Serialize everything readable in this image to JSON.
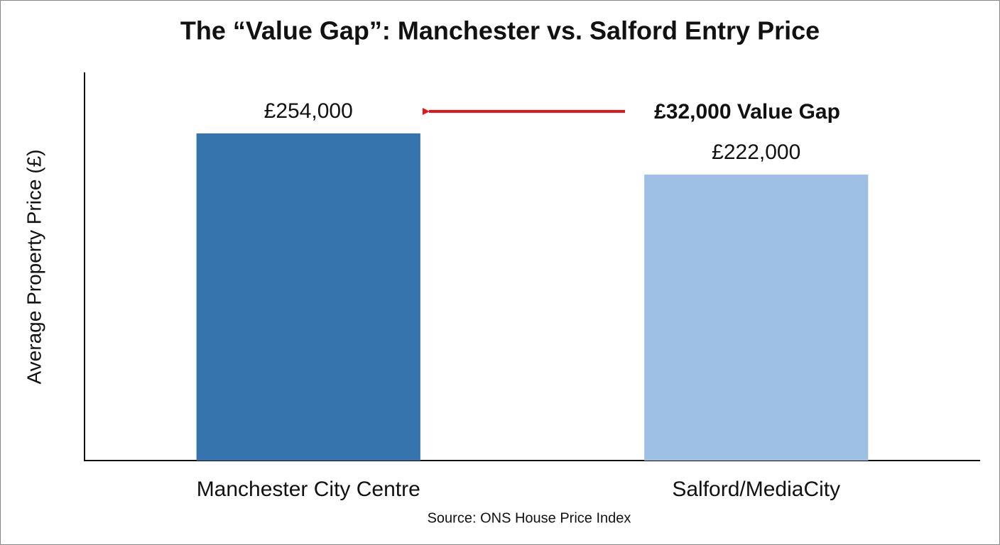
{
  "chart_data": {
    "type": "bar",
    "title": "The “Value Gap”: Manchester vs. Salford Entry Price",
    "y_label": "Average Property Price (£)",
    "categories": [
      "Manchester City Centre",
      "Salford/MediaCity"
    ],
    "values": [
      254000,
      222000
    ],
    "value_labels": [
      "£254,000",
      "£222,000"
    ],
    "colors": [
      "#3674ae",
      "#9dc0e4"
    ],
    "ylim": [
      0,
      300000
    ],
    "annotation": "£32,000 Value Gap",
    "source": "Source: ONS House Price Index"
  }
}
